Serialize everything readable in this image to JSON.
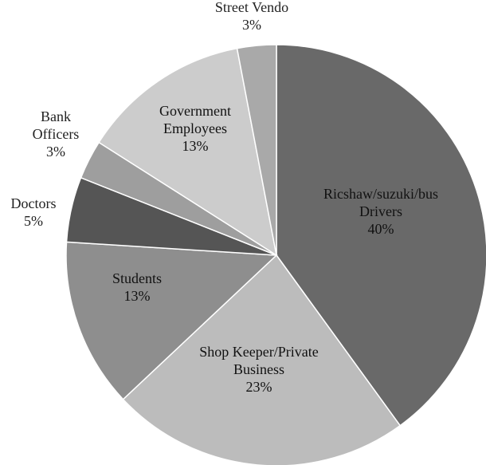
{
  "chart_data": {
    "type": "pie",
    "title": "",
    "start_angle_deg": 90,
    "direction": "clockwise",
    "slices": [
      {
        "label_lines": [
          "Ricshaw/suzuki/bus",
          "Drivers"
        ],
        "value_label": "40%",
        "value": 40,
        "color": "#696969",
        "label_position": "inside"
      },
      {
        "label_lines": [
          "Shop Keeper/Private",
          "Business"
        ],
        "value_label": "23%",
        "value": 23,
        "color": "#bcbcbc",
        "label_position": "inside"
      },
      {
        "label_lines": [
          "Students"
        ],
        "value_label": "13%",
        "value": 13,
        "color": "#8e8e8e",
        "label_position": "inside"
      },
      {
        "label_lines": [
          "Doctors"
        ],
        "value_label": "5%",
        "value": 5,
        "color": "#555555",
        "label_position": "outside"
      },
      {
        "label_lines": [
          "Bank",
          "Officers"
        ],
        "value_label": "3%",
        "value": 3,
        "color": "#9e9e9e",
        "label_position": "outside"
      },
      {
        "label_lines": [
          "Government",
          "Employees"
        ],
        "value_label": "13%",
        "value": 13,
        "color": "#cccccc",
        "label_position": "inside"
      },
      {
        "label_lines": [
          "Street Vendo"
        ],
        "value_label": "3%",
        "value": 3,
        "color": "#a9a9a9",
        "label_position": "outside"
      }
    ]
  }
}
